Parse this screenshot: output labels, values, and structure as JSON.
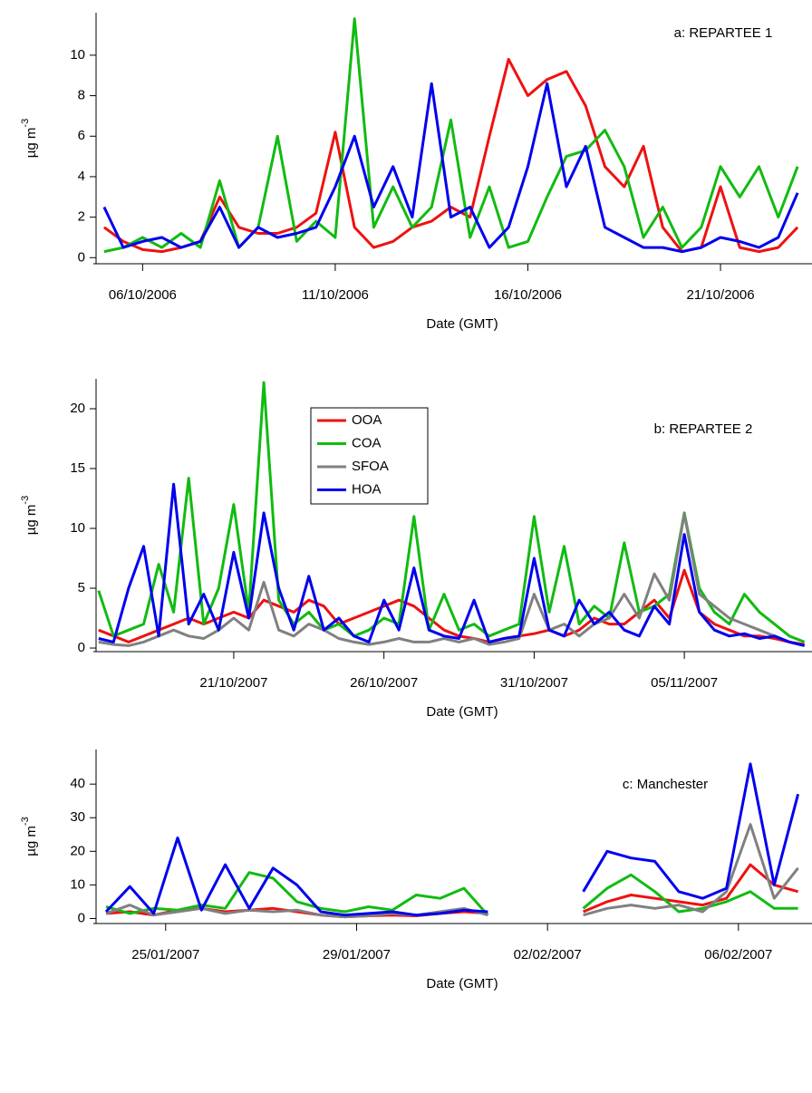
{
  "chart_data": [
    {
      "type": "line",
      "annotation": "a: REPARTEE 1",
      "xlabel": "Date (GMT)",
      "ylabel": {
        "text": "µg m",
        "superscript": "-3"
      },
      "xlim": [
        "2006-10-04T19:00",
        "2006-10-23T09:00"
      ],
      "ylim": [
        -0.3,
        12.1
      ],
      "xticks": [
        {
          "value": "2006-10-06T00:00",
          "label": "06/10/2006"
        },
        {
          "value": "2006-10-11T00:00",
          "label": "11/10/2006"
        },
        {
          "value": "2006-10-16T00:00",
          "label": "16/10/2006"
        },
        {
          "value": "2006-10-21T00:00",
          "label": "21/10/2006"
        }
      ],
      "yticks": [
        0,
        2,
        4,
        6,
        8,
        10
      ],
      "x": [
        "2006-10-05T00:00",
        "2006-10-05T12:00",
        "2006-10-06T00:00",
        "2006-10-06T12:00",
        "2006-10-07T00:00",
        "2006-10-07T12:00",
        "2006-10-08T00:00",
        "2006-10-08T12:00",
        "2006-10-09T00:00",
        "2006-10-09T12:00",
        "2006-10-10T00:00",
        "2006-10-10T12:00",
        "2006-10-11T00:00",
        "2006-10-11T12:00",
        "2006-10-12T00:00",
        "2006-10-12T12:00",
        "2006-10-13T00:00",
        "2006-10-13T12:00",
        "2006-10-14T00:00",
        "2006-10-14T12:00",
        "2006-10-15T00:00",
        "2006-10-15T12:00",
        "2006-10-16T00:00",
        "2006-10-16T12:00",
        "2006-10-17T00:00",
        "2006-10-17T12:00",
        "2006-10-18T00:00",
        "2006-10-18T12:00",
        "2006-10-19T00:00",
        "2006-10-19T12:00",
        "2006-10-20T00:00",
        "2006-10-20T12:00",
        "2006-10-21T00:00",
        "2006-10-21T12:00",
        "2006-10-22T00:00",
        "2006-10-22T12:00",
        "2006-10-23T00:00"
      ],
      "series": [
        {
          "color": "#ee1111",
          "values": [
            1.5,
            0.8,
            0.4,
            0.3,
            0.5,
            0.8,
            3.0,
            1.5,
            1.2,
            1.2,
            1.5,
            2.2,
            6.2,
            1.5,
            0.5,
            0.8,
            1.5,
            1.8,
            2.5,
            2.0,
            6.0,
            9.8,
            8.0,
            8.8,
            9.2,
            7.5,
            4.5,
            3.5,
            5.5,
            1.5,
            0.3,
            0.5,
            3.5,
            0.5,
            0.3,
            0.5,
            1.5
          ]
        },
        {
          "color": "#11bb11",
          "values": [
            0.3,
            0.5,
            1.0,
            0.5,
            1.2,
            0.5,
            3.8,
            0.5,
            1.5,
            6.0,
            0.8,
            1.8,
            1.0,
            11.8,
            1.5,
            3.5,
            1.5,
            2.5,
            6.8,
            1.0,
            3.5,
            0.5,
            0.8,
            3.0,
            5.0,
            5.3,
            6.3,
            4.5,
            1.0,
            2.5,
            0.5,
            1.5,
            4.5,
            3.0,
            4.5,
            2.0,
            4.5
          ]
        },
        {
          "color": "#0000ee",
          "values": [
            2.5,
            0.5,
            0.8,
            1.0,
            0.5,
            0.8,
            2.5,
            0.5,
            1.5,
            1.0,
            1.2,
            1.5,
            3.5,
            6.0,
            2.5,
            4.5,
            2.0,
            8.6,
            2.0,
            2.5,
            0.5,
            1.5,
            4.5,
            8.6,
            3.5,
            5.5,
            1.5,
            1.0,
            0.5,
            0.5,
            0.3,
            0.5,
            1.0,
            0.8,
            0.5,
            1.0,
            3.2
          ]
        }
      ]
    },
    {
      "type": "line",
      "annotation": "b: REPARTEE 2",
      "xlabel": "Date (GMT)",
      "ylabel": {
        "text": "µg m",
        "superscript": "-3"
      },
      "legend": true,
      "xlim": [
        "2007-10-16T10:00",
        "2007-11-09T06:00"
      ],
      "ylim": [
        -0.3,
        22.5
      ],
      "xticks": [
        {
          "value": "2007-10-21T00:00",
          "label": "21/10/2007"
        },
        {
          "value": "2007-10-26T00:00",
          "label": "26/10/2007"
        },
        {
          "value": "2007-10-31T00:00",
          "label": "31/10/2007"
        },
        {
          "value": "2007-11-05T00:00",
          "label": "05/11/2007"
        }
      ],
      "yticks": [
        0,
        5,
        10,
        15,
        20
      ],
      "x": [
        "2007-10-16T12:00",
        "2007-10-17T00:00",
        "2007-10-17T12:00",
        "2007-10-18T00:00",
        "2007-10-18T12:00",
        "2007-10-19T00:00",
        "2007-10-19T12:00",
        "2007-10-20T00:00",
        "2007-10-20T12:00",
        "2007-10-21T00:00",
        "2007-10-21T12:00",
        "2007-10-22T00:00",
        "2007-10-22T12:00",
        "2007-10-23T00:00",
        "2007-10-23T12:00",
        "2007-10-24T00:00",
        "2007-10-24T12:00",
        "2007-10-25T00:00",
        "2007-10-25T12:00",
        "2007-10-26T00:00",
        "2007-10-26T12:00",
        "2007-10-27T00:00",
        "2007-10-27T12:00",
        "2007-10-28T00:00",
        "2007-10-28T12:00",
        "2007-10-29T00:00",
        "2007-10-29T12:00",
        "2007-10-30T00:00",
        "2007-10-30T12:00",
        "2007-10-31T00:00",
        "2007-10-31T12:00",
        "2007-11-01T00:00",
        "2007-11-01T12:00",
        "2007-11-02T00:00",
        "2007-11-02T12:00",
        "2007-11-03T00:00",
        "2007-11-03T12:00",
        "2007-11-04T00:00",
        "2007-11-04T12:00",
        "2007-11-05T00:00",
        "2007-11-05T12:00",
        "2007-11-06T00:00",
        "2007-11-06T12:00",
        "2007-11-07T00:00",
        "2007-11-07T12:00",
        "2007-11-08T00:00",
        "2007-11-08T12:00",
        "2007-11-09T00:00"
      ],
      "series": [
        {
          "name": "OOA",
          "color": "#ee1111",
          "values": [
            1.5,
            1.0,
            0.5,
            1.0,
            1.5,
            2.0,
            2.5,
            2.0,
            2.5,
            3.0,
            2.5,
            4.0,
            3.5,
            3.0,
            4.0,
            3.5,
            2.0,
            2.5,
            3.0,
            3.5,
            4.0,
            3.5,
            2.5,
            1.5,
            1.0,
            0.8,
            0.5,
            0.8,
            1.0,
            1.2,
            1.5,
            1.0,
            1.5,
            2.5,
            2.0,
            2.0,
            3.0,
            4.0,
            2.5,
            6.5,
            3.0,
            2.0,
            1.5,
            1.0,
            1.0,
            0.8,
            0.5,
            0.3
          ]
        },
        {
          "name": "COA",
          "color": "#11bb11",
          "values": [
            4.8,
            1.0,
            1.5,
            2.0,
            7.0,
            3.0,
            14.2,
            2.0,
            5.0,
            12.0,
            3.0,
            22.2,
            4.0,
            2.0,
            3.0,
            1.5,
            2.0,
            1.0,
            1.5,
            2.5,
            2.0,
            11.0,
            1.5,
            4.5,
            1.5,
            2.0,
            1.0,
            1.5,
            2.0,
            11.0,
            3.0,
            8.5,
            2.0,
            3.5,
            2.5,
            8.8,
            3.0,
            3.5,
            4.5,
            11.3,
            5.0,
            3.0,
            2.0,
            4.5,
            3.0,
            2.0,
            1.0,
            0.5
          ]
        },
        {
          "name": "SFOA",
          "color": "#808080",
          "values": [
            0.5,
            0.3,
            0.2,
            0.5,
            1.0,
            1.5,
            1.0,
            0.8,
            1.5,
            2.5,
            1.5,
            5.5,
            1.5,
            1.0,
            2.0,
            1.5,
            0.8,
            0.5,
            0.3,
            0.5,
            0.8,
            0.5,
            0.5,
            0.8,
            0.5,
            0.8,
            0.3,
            0.5,
            0.8,
            4.5,
            1.5,
            2.0,
            1.0,
            2.0,
            2.5,
            4.5,
            2.5,
            6.2,
            4.0,
            11.2,
            4.5,
            3.5,
            2.5,
            2.0,
            1.5,
            1.0,
            0.5,
            0.2
          ]
        },
        {
          "name": "HOA",
          "color": "#0000ee",
          "values": [
            0.8,
            0.5,
            5.0,
            8.5,
            1.0,
            13.7,
            2.0,
            4.5,
            1.5,
            8.0,
            2.5,
            11.3,
            5.0,
            1.5,
            6.0,
            1.5,
            2.5,
            1.0,
            0.5,
            4.0,
            1.5,
            6.7,
            1.5,
            1.0,
            0.8,
            4.0,
            0.5,
            0.8,
            1.0,
            7.5,
            1.5,
            1.0,
            4.0,
            2.0,
            3.0,
            1.5,
            1.0,
            3.5,
            2.0,
            9.5,
            3.0,
            1.5,
            1.0,
            1.2,
            0.8,
            1.0,
            0.5,
            0.2
          ]
        }
      ]
    },
    {
      "type": "line",
      "annotation": "c: Manchester",
      "xlabel": "Date (GMT)",
      "ylabel": {
        "text": "µg m",
        "superscript": "-3"
      },
      "xlim": [
        "2007-01-23T13:00",
        "2007-02-07T13:00"
      ],
      "ylim": [
        -1.5,
        50.3
      ],
      "xticks": [
        {
          "value": "2007-01-25T00:00",
          "label": "25/01/2007"
        },
        {
          "value": "2007-01-29T00:00",
          "label": "29/01/2007"
        },
        {
          "value": "2007-02-02T00:00",
          "label": "02/02/2007"
        },
        {
          "value": "2007-02-06T00:00",
          "label": "06/02/2007"
        }
      ],
      "yticks": [
        0,
        10,
        20,
        30,
        40
      ],
      "x": [
        "2007-01-23T18:00",
        "2007-01-24T06:00",
        "2007-01-24T18:00",
        "2007-01-25T06:00",
        "2007-01-25T18:00",
        "2007-01-26T06:00",
        "2007-01-26T18:00",
        "2007-01-27T06:00",
        "2007-01-27T18:00",
        "2007-01-28T06:00",
        "2007-01-28T18:00",
        "2007-01-29T06:00",
        "2007-01-29T18:00",
        "2007-01-30T06:00",
        "2007-01-30T18:00",
        "2007-01-31T06:00",
        "2007-01-31T18:00",
        "2007-02-01T06:00",
        "2007-02-01T18:00",
        "2007-02-02T06:00",
        "2007-02-02T18:00",
        "2007-02-03T06:00",
        "2007-02-03T18:00",
        "2007-02-04T06:00",
        "2007-02-04T18:00",
        "2007-02-05T06:00",
        "2007-02-05T18:00",
        "2007-02-06T06:00",
        "2007-02-06T18:00",
        "2007-02-07T06:00"
      ],
      "series": [
        {
          "color": "#ee1111",
          "values": [
            1.5,
            2.0,
            1.0,
            2.5,
            3.0,
            2.0,
            2.5,
            3.0,
            2.0,
            1.0,
            0.5,
            0.8,
            1.0,
            0.8,
            1.5,
            2.0,
            1.5,
            null,
            null,
            null,
            2.0,
            5.0,
            7.0,
            6.0,
            5.0,
            4.0,
            6.0,
            16.0,
            10.0,
            8.0
          ]
        },
        {
          "color": "#11bb11",
          "values": [
            3.5,
            1.5,
            3.0,
            2.5,
            4.0,
            3.0,
            13.7,
            12.0,
            5.0,
            3.0,
            2.0,
            3.5,
            2.5,
            7.0,
            6.0,
            9.0,
            1.0,
            null,
            null,
            null,
            3.0,
            9.0,
            13.0,
            8.0,
            2.0,
            3.0,
            5.0,
            8.0,
            3.0,
            3.0
          ]
        },
        {
          "color": "#808080",
          "values": [
            1.5,
            4.0,
            1.0,
            2.0,
            3.0,
            1.5,
            2.5,
            2.0,
            2.5,
            1.0,
            0.5,
            0.8,
            1.5,
            1.0,
            2.0,
            3.0,
            1.0,
            null,
            null,
            null,
            1.0,
            3.0,
            4.0,
            3.0,
            4.0,
            2.0,
            8.0,
            28.0,
            6.0,
            15.0
          ]
        },
        {
          "color": "#0000ee",
          "values": [
            2.0,
            9.5,
            1.5,
            24.0,
            2.5,
            16.0,
            3.0,
            15.0,
            10.0,
            2.0,
            1.0,
            1.5,
            2.0,
            1.0,
            1.5,
            2.5,
            2.0,
            null,
            null,
            null,
            8.0,
            20.0,
            18.0,
            17.0,
            8.0,
            6.0,
            9.0,
            46.0,
            10.0,
            37.0
          ]
        }
      ]
    }
  ]
}
